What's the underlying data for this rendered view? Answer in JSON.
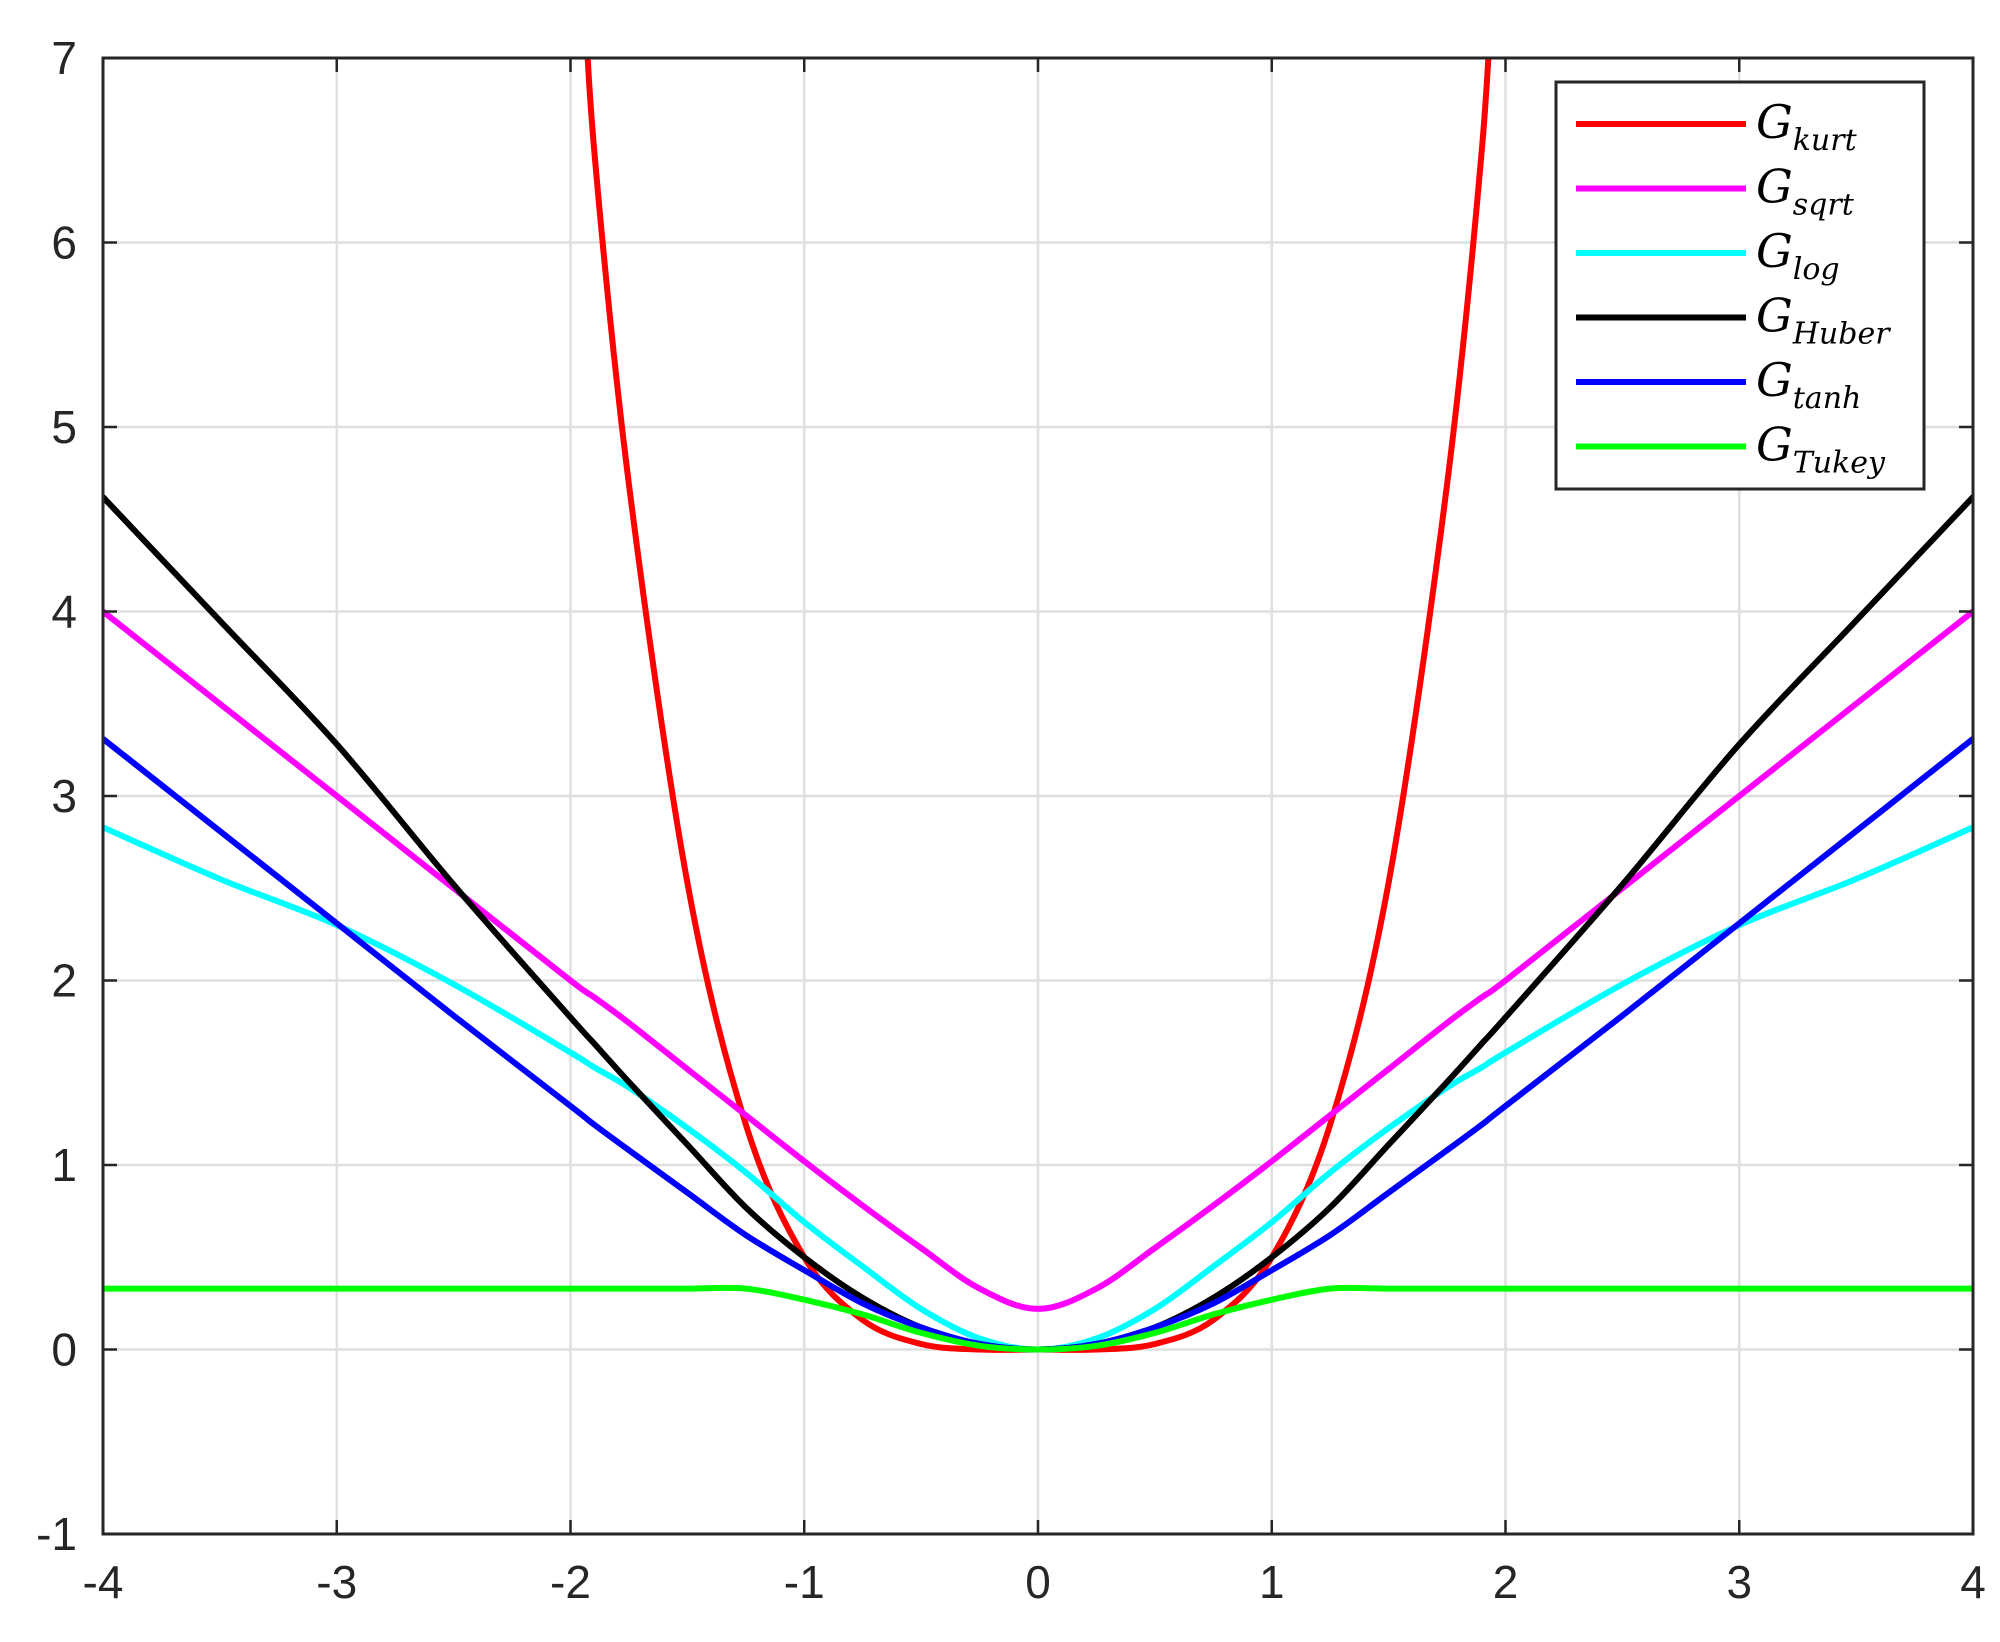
{
  "chart_data": {
    "type": "line",
    "title": "",
    "xlabel": "",
    "ylabel": "",
    "xlim": [
      -4,
      4
    ],
    "ylim": [
      -1,
      7
    ],
    "xticks": [
      -4,
      -3,
      -2,
      -1,
      0,
      1,
      2,
      3,
      4
    ],
    "yticks": [
      -1,
      0,
      1,
      2,
      3,
      4,
      5,
      6,
      7
    ],
    "grid": true,
    "legend": "top-right",
    "x": [
      -4.0,
      -3.5,
      -3.0,
      -2.5,
      -2.0,
      -1.9,
      -1.75,
      -1.5,
      -1.25,
      -1.0,
      -0.75,
      -0.5,
      -0.25,
      0.0,
      0.25,
      0.5,
      0.75,
      1.0,
      1.25,
      1.5,
      1.75,
      1.9,
      2.0,
      2.5,
      3.0,
      3.5,
      4.0
    ],
    "series": [
      {
        "name": "G",
        "subscript": "kurt",
        "color": "#ff0000",
        "values": [
          null,
          null,
          null,
          null,
          null,
          6.52,
          4.69,
          2.53,
          1.22,
          0.5,
          0.16,
          0.03,
          0.0,
          0.0,
          0.0,
          0.03,
          0.16,
          0.5,
          1.22,
          2.53,
          4.69,
          6.52,
          null,
          null,
          null,
          null,
          null
        ]
      },
      {
        "name": "G",
        "subscript": "sqrt",
        "color": "#ff00ff",
        "values": [
          4.0,
          3.5,
          3.0,
          2.5,
          2.0,
          1.91,
          1.77,
          1.52,
          1.27,
          1.02,
          0.78,
          0.55,
          0.33,
          0.22,
          0.33,
          0.55,
          0.78,
          1.02,
          1.27,
          1.52,
          1.77,
          1.91,
          2.0,
          2.5,
          3.0,
          3.5,
          4.0
        ]
      },
      {
        "name": "G",
        "subscript": "log",
        "color": "#00ffff",
        "values": [
          2.83,
          2.55,
          2.3,
          1.98,
          1.61,
          1.53,
          1.42,
          1.2,
          0.96,
          0.69,
          0.45,
          0.22,
          0.06,
          0.0,
          0.06,
          0.22,
          0.45,
          0.69,
          0.96,
          1.2,
          1.42,
          1.53,
          1.61,
          1.98,
          2.3,
          2.55,
          2.83
        ]
      },
      {
        "name": "G",
        "subscript": "Huber",
        "color": "#000000",
        "values": [
          4.62,
          3.95,
          3.28,
          2.52,
          1.8,
          1.66,
          1.45,
          1.11,
          0.77,
          0.5,
          0.28,
          0.12,
          0.03,
          0.0,
          0.03,
          0.12,
          0.28,
          0.5,
          0.77,
          1.11,
          1.45,
          1.66,
          1.8,
          2.52,
          3.28,
          3.95,
          4.62
        ]
      },
      {
        "name": "G",
        "subscript": "tanh",
        "color": "#0000ff",
        "values": [
          3.31,
          2.81,
          2.31,
          1.81,
          1.32,
          1.22,
          1.08,
          0.85,
          0.62,
          0.43,
          0.25,
          0.12,
          0.03,
          0.0,
          0.03,
          0.12,
          0.25,
          0.43,
          0.62,
          0.85,
          1.08,
          1.22,
          1.32,
          1.81,
          2.31,
          2.81,
          3.31
        ]
      },
      {
        "name": "G",
        "subscript": "Tukey",
        "color": "#00ff00",
        "values": [
          0.33,
          0.33,
          0.33,
          0.33,
          0.33,
          0.33,
          0.33,
          0.33,
          0.33,
          0.27,
          0.19,
          0.09,
          0.02,
          0.0,
          0.02,
          0.09,
          0.19,
          0.27,
          0.33,
          0.33,
          0.33,
          0.33,
          0.33,
          0.33,
          0.33,
          0.33,
          0.33
        ]
      }
    ]
  }
}
